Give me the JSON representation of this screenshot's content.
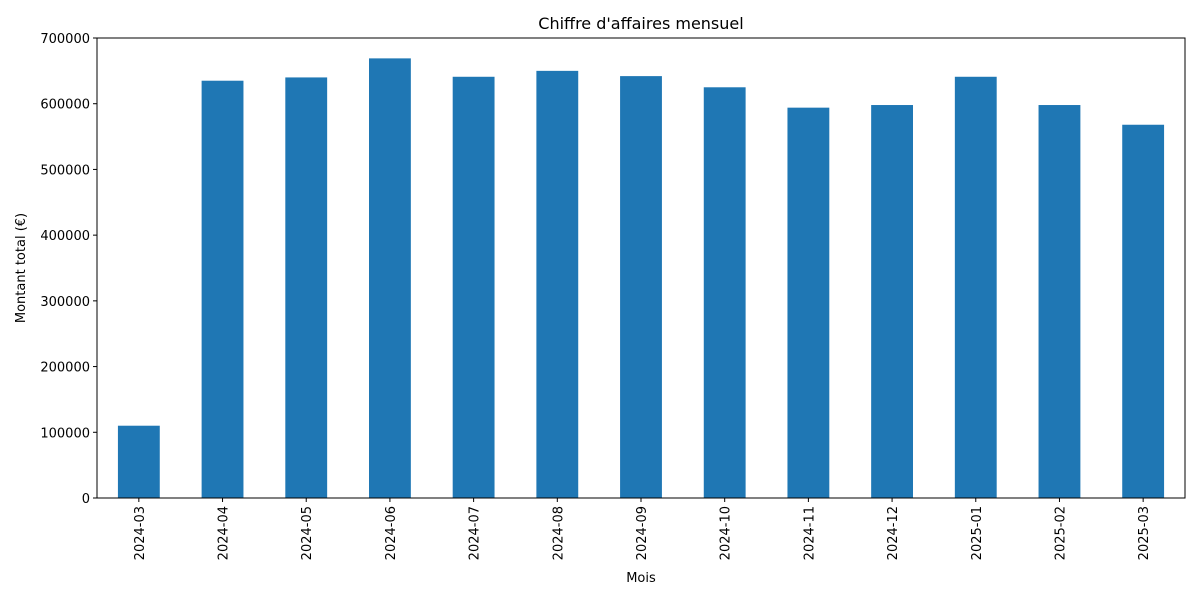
{
  "chart_data": {
    "type": "bar",
    "title": "Chiffre d'affaires mensuel",
    "xlabel": "Mois",
    "ylabel": "Montant total (€)",
    "categories": [
      "2024-03",
      "2024-04",
      "2024-05",
      "2024-06",
      "2024-07",
      "2024-08",
      "2024-09",
      "2024-10",
      "2024-11",
      "2024-12",
      "2025-01",
      "2025-02",
      "2025-03"
    ],
    "values": [
      110000,
      635000,
      640000,
      669000,
      641000,
      650000,
      642000,
      625000,
      594000,
      598000,
      641000,
      598000,
      568000
    ],
    "ylim": [
      0,
      700000
    ],
    "yticks": [
      0,
      100000,
      200000,
      300000,
      400000,
      500000,
      600000,
      700000
    ],
    "ytick_labels": [
      "0",
      "100000",
      "200000",
      "300000",
      "400000",
      "500000",
      "600000",
      "700000"
    ],
    "bar_color": "#1f77b4",
    "grid": false,
    "legend": "none"
  }
}
